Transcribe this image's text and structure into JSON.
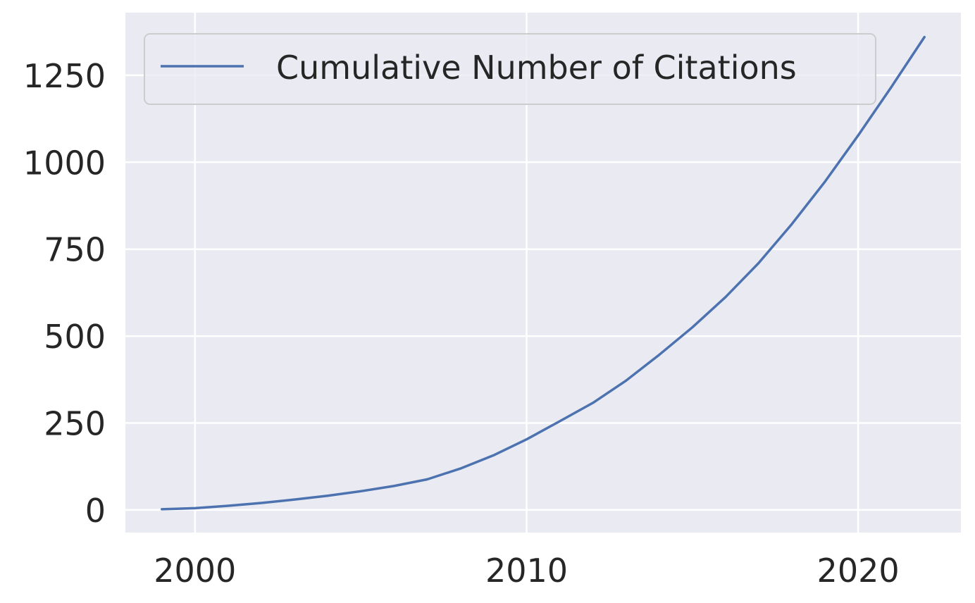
{
  "chart_data": {
    "type": "line",
    "title": "",
    "xlabel": "",
    "ylabel": "",
    "xlim": [
      1997.9,
      2023.1
    ],
    "ylim": [
      -65,
      1430
    ],
    "xticks": [
      2000,
      2010,
      2020
    ],
    "yticks": [
      0,
      250,
      500,
      750,
      1000,
      1250
    ],
    "grid": true,
    "legend": "upper-left",
    "series": [
      {
        "name": "Cumulative Number of Citations",
        "color": "#4c72b0",
        "x": [
          1999,
          2000,
          2001,
          2002,
          2003,
          2004,
          2005,
          2006,
          2007,
          2008,
          2009,
          2010,
          2011,
          2012,
          2013,
          2014,
          2015,
          2016,
          2017,
          2018,
          2019,
          2020,
          2021,
          2022
        ],
        "y": [
          2,
          5,
          12,
          20,
          30,
          41,
          54,
          69,
          88,
          119,
          157,
          203,
          255,
          308,
          372,
          446,
          525,
          612,
          710,
          822,
          944,
          1077,
          1216,
          1360
        ]
      }
    ]
  }
}
